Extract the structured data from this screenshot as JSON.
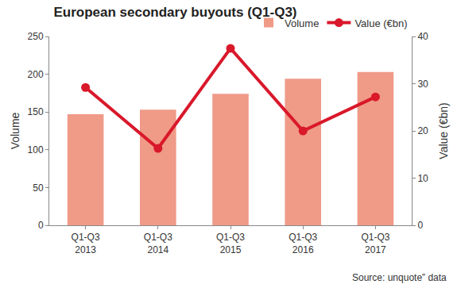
{
  "chart_data": {
    "type": "bar",
    "title": "European secondary buyouts (Q1-Q3)",
    "categories": [
      "Q1-Q3\n2013",
      "Q1-Q3\n2014",
      "Q1-Q3\n2015",
      "Q1-Q3\n2016",
      "Q1-Q3\n2017"
    ],
    "series": [
      {
        "name": "Volume",
        "type": "bar",
        "color": "#f09a88",
        "values": [
          147,
          153,
          174,
          194,
          203
        ]
      },
      {
        "name": "Value (€bn)",
        "type": "line",
        "axis": "y2",
        "color": "#d9182b",
        "marker": "circle",
        "values": [
          29.2,
          16.3,
          37.5,
          20,
          27.2
        ]
      }
    ],
    "ylabel": "Volume",
    "y2label": "Value (€bn)",
    "ylim": [
      0,
      250
    ],
    "yticks": [
      0,
      50,
      100,
      150,
      200,
      250
    ],
    "y2lim": [
      0,
      40
    ],
    "y2ticks": [
      0,
      10,
      20,
      30,
      40
    ],
    "grid": false,
    "legend": "top right",
    "annotations": [
      {
        "text": "Source: unquote” data"
      }
    ]
  }
}
